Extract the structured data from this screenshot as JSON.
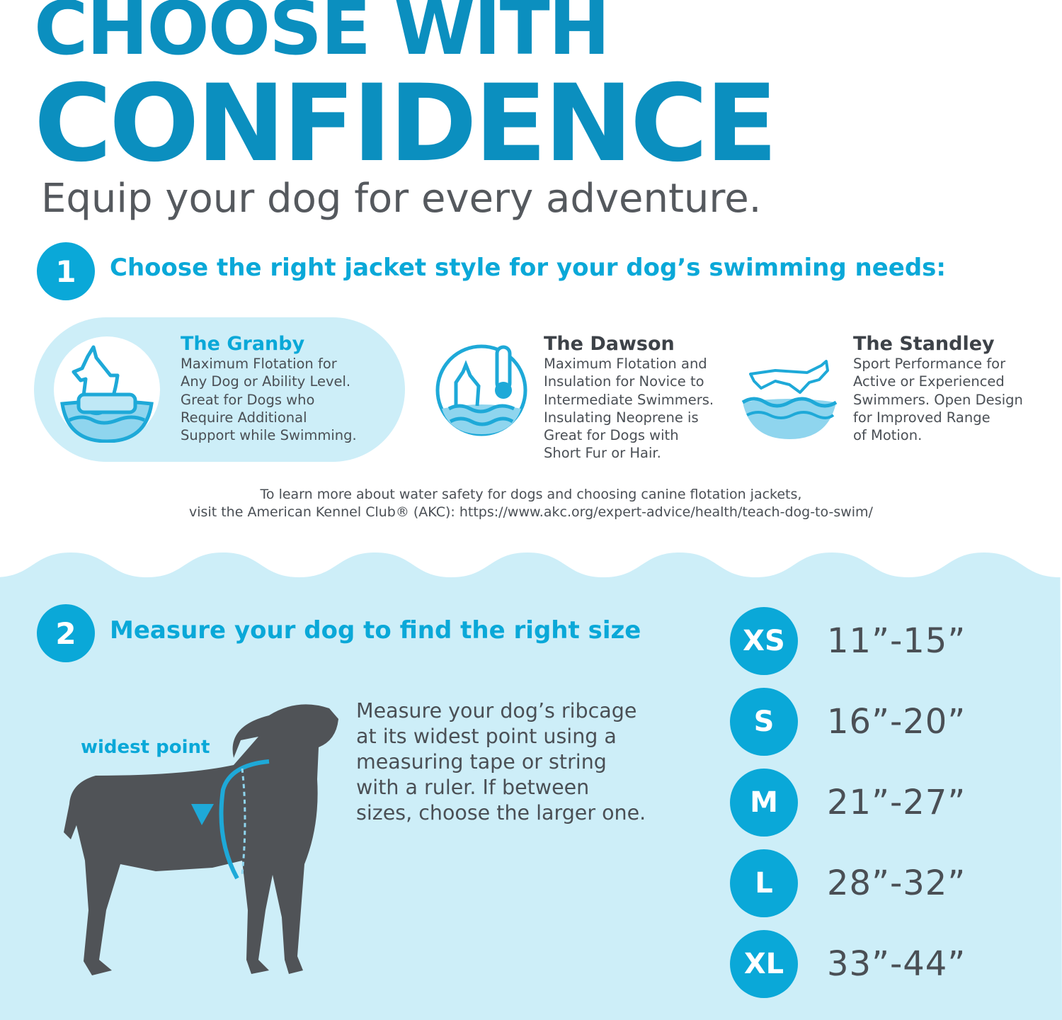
{
  "header": {
    "title_line1": "CHOOSE WITH",
    "title_line2": "CONFIDENCE",
    "subtitle": "Equip your dog for every adventure."
  },
  "colors": {
    "brand_dark": "#0b8fbf",
    "brand": "#0aa8d8",
    "light_blue": "#cdeef8",
    "text": "#4a4f55",
    "dog": "#505357"
  },
  "step1": {
    "number": "1",
    "heading": "Choose the right jacket style for your dog’s swimming needs:",
    "jackets": [
      {
        "name": "The Granby",
        "icon": "dog-floating-on-raft-icon",
        "description": "Maximum Flotation for\nAny Dog or Ability Level.\nGreat for Dogs who\nRequire Additional\nSupport while Swimming.",
        "selected": true
      },
      {
        "name": "The Dawson",
        "icon": "dog-thermometer-icon",
        "description": "Maximum Flotation and\nInsulation for Novice to\nIntermediate Swimmers.\nInsulating Neoprene is\nGreat for Dogs with\nShort Fur or Hair."
      },
      {
        "name": "The Standley",
        "icon": "dog-leaping-over-water-icon",
        "description": "Sport Performance for\nActive or Experienced\nSwimmers. Open Design\nfor Improved Range\nof Motion."
      }
    ],
    "note_line1": "To learn more about water safety for dogs and choosing canine flotation jackets,",
    "note_line2": "visit the American Kennel Club® (AKC):  https://www.akc.org/expert-advice/health/teach-dog-to-swim/"
  },
  "step2": {
    "number": "2",
    "heading": "Measure your dog to find the right size",
    "diagram_label": "widest point",
    "instructions": "Measure your dog’s ribcage\nat its widest point using a\nmeasuring tape or string\nwith a ruler. If between\nsizes, choose the larger one.",
    "sizes": [
      {
        "size": "XS",
        "range": "11”-15”"
      },
      {
        "size": "S",
        "range": "16”-20”"
      },
      {
        "size": "M",
        "range": "21”-27”"
      },
      {
        "size": "L",
        "range": "28”-32”"
      },
      {
        "size": "XL",
        "range": "33”-44”"
      }
    ]
  }
}
